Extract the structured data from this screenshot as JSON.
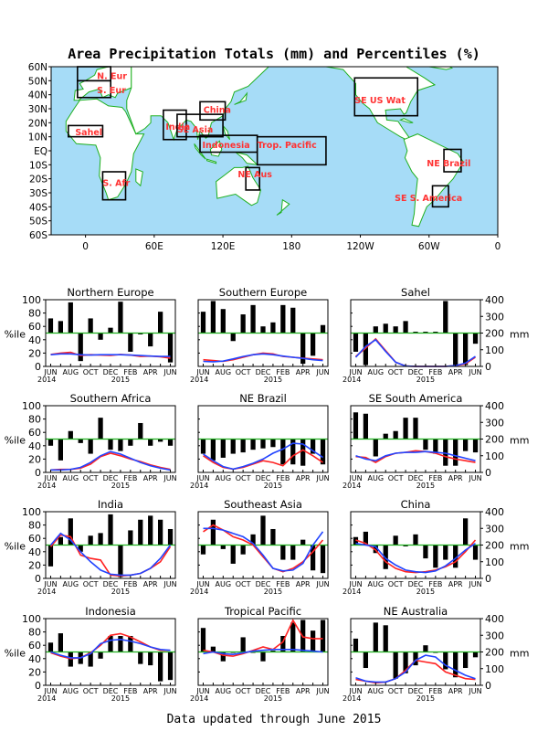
{
  "title": "Area Precipitation Totals (mm) and Percentiles (%)",
  "footer": "Data updated through June 2015",
  "map": {
    "lat_labels": [
      "60N",
      "50N",
      "40N",
      "30N",
      "20N",
      "10N",
      "EQ",
      "10S",
      "20S",
      "30S",
      "40S",
      "50S",
      "60S"
    ],
    "lon_labels": [
      "0",
      "60E",
      "120E",
      "180",
      "120W",
      "60W",
      "0"
    ],
    "regions": [
      {
        "label": "N. Eur",
        "lon": [
          -7,
          22
        ],
        "lat": [
          50,
          60
        ],
        "text_lon": 10,
        "text_lat": 53
      },
      {
        "label": "S. Eur",
        "lon": [
          -7,
          22
        ],
        "lat": [
          38,
          50
        ],
        "text_lon": 10,
        "text_lat": 43
      },
      {
        "label": "Sahel",
        "lon": [
          -15,
          15
        ],
        "lat": [
          10,
          18
        ],
        "text_lon": -9,
        "text_lat": 13
      },
      {
        "label": "S. Afr",
        "lon": [
          15,
          35
        ],
        "lat": [
          -35,
          -15
        ],
        "text_lon": 15,
        "text_lat": -23
      },
      {
        "label": "India",
        "lon": [
          68,
          88
        ],
        "lat": [
          8,
          29
        ],
        "text_lon": 70,
        "text_lat": 17
      },
      {
        "label": "China",
        "lon": [
          100,
          122
        ],
        "lat": [
          22,
          35
        ],
        "text_lon": 103,
        "text_lat": 29
      },
      {
        "label": "SE Asia",
        "lon": [
          80,
          120
        ],
        "lat": [
          10,
          26
        ],
        "text_lon": 80,
        "text_lat": 15
      },
      {
        "label": "Indonesia",
        "lon": [
          100,
          150
        ],
        "lat": [
          -1,
          11
        ],
        "text_lon": 102,
        "text_lat": 4
      },
      {
        "label": "Trop. Pacific",
        "lon": [
          150,
          210
        ],
        "lat": [
          -10,
          10
        ],
        "text_lon": 150,
        "text_lat": 4
      },
      {
        "label": "NE Aus",
        "lon": [
          140,
          152
        ],
        "lat": [
          -28,
          -12
        ],
        "text_lon": 133,
        "text_lat": -17
      },
      {
        "label": "SE US Wat",
        "lon": [
          235,
          290
        ],
        "lat": [
          25,
          52
        ],
        "text_lon": 235,
        "text_lat": 36
      },
      {
        "label": "NE Brazil",
        "lon": [
          313,
          328
        ],
        "lat": [
          -15,
          1
        ],
        "text_lon": 298,
        "text_lat": -9
      },
      {
        "label": "SE S. America",
        "lon": [
          303,
          317
        ],
        "lat": [
          -40,
          -25
        ],
        "text_lon": 270,
        "text_lat": -34
      }
    ]
  },
  "axis_labels": {
    "left": "%ile",
    "right": "mm"
  },
  "left_ticks": [
    "0",
    "20",
    "40",
    "60",
    "80",
    "100"
  ],
  "right_ticks": [
    "0",
    "100",
    "200",
    "300",
    "400"
  ],
  "month_labels": [
    "JUN",
    "AUG",
    "OCT",
    "DEC",
    "FEB",
    "APR",
    "JUN"
  ],
  "year_labels": [
    "2014",
    "2015"
  ],
  "chart_data": [
    {
      "type": "bar",
      "title": "Northern Europe",
      "x": [
        "Jun 2014",
        "Jul",
        "Aug",
        "Sep",
        "Oct",
        "Nov",
        "Dec",
        "Jan 2015",
        "Feb",
        "Mar",
        "Apr",
        "May",
        "Jun"
      ],
      "ylim": [
        0,
        100
      ],
      "y2lim": [
        0,
        400
      ],
      "percentiles": [
        72,
        68,
        96,
        8,
        72,
        40,
        58,
        97,
        22,
        48,
        30,
        82,
        6
      ],
      "series": [
        {
          "name": "",
          "color": "#ff2222",
          "values": [
            72,
            80,
            85,
            65,
            70,
            68,
            66,
            72,
            68,
            60,
            62,
            58,
            50
          ]
        },
        {
          "name": "",
          "color": "#2244ff",
          "values": [
            70,
            75,
            75,
            70,
            68,
            70,
            70,
            70,
            68,
            65,
            62,
            60,
            60
          ]
        }
      ]
    },
    {
      "type": "bar",
      "title": "Southern Europe",
      "x": [
        "Jun 2014",
        "Jul",
        "Aug",
        "Sep",
        "Oct",
        "Nov",
        "Dec",
        "Jan 2015",
        "Feb",
        "Mar",
        "Apr",
        "May",
        "Jun"
      ],
      "ylim": [
        0,
        100
      ],
      "y2lim": [
        0,
        400
      ],
      "percentiles": [
        82,
        98,
        86,
        38,
        78,
        92,
        60,
        66,
        92,
        88,
        4,
        16,
        62
      ],
      "series": [
        {
          "name": "",
          "color": "#ff2222",
          "values": [
            40,
            35,
            30,
            40,
            55,
            70,
            80,
            75,
            60,
            55,
            50,
            45,
            40
          ]
        },
        {
          "name": "",
          "color": "#2244ff",
          "values": [
            30,
            28,
            32,
            45,
            60,
            70,
            75,
            70,
            62,
            55,
            48,
            40,
            35
          ]
        }
      ]
    },
    {
      "type": "bar",
      "title": "Sahel",
      "x": [
        "Jun 2014",
        "Jul",
        "Aug",
        "Sep",
        "Oct",
        "Nov",
        "Dec",
        "Jan 2015",
        "Feb",
        "Mar",
        "Apr",
        "May",
        "Jun"
      ],
      "ylim": [
        0,
        100
      ],
      "y2lim": [
        0,
        400
      ],
      "percentiles": [
        22,
        2,
        60,
        64,
        60,
        68,
        52,
        52,
        52,
        98,
        2,
        2,
        34
      ],
      "series": [
        {
          "name": "",
          "color": "#ff2222",
          "values": [
            60,
            110,
            165,
            95,
            25,
            2,
            0,
            0,
            0,
            0,
            5,
            15,
            55
          ]
        },
        {
          "name": "",
          "color": "#2244ff",
          "values": [
            55,
            120,
            160,
            90,
            25,
            2,
            0,
            0,
            0,
            0,
            5,
            20,
            60
          ]
        }
      ]
    },
    {
      "type": "bar",
      "title": "Southern Africa",
      "x": [
        "Jun 2014",
        "Jul",
        "Aug",
        "Sep",
        "Oct",
        "Nov",
        "Dec",
        "Jan 2015",
        "Feb",
        "Mar",
        "Apr",
        "May",
        "Jun"
      ],
      "ylim": [
        0,
        100
      ],
      "y2lim": [
        0,
        400
      ],
      "percentiles": [
        40,
        18,
        62,
        44,
        28,
        82,
        34,
        32,
        40,
        74,
        40,
        46,
        40
      ],
      "series": [
        {
          "name": "",
          "color": "#ff2222",
          "values": [
            15,
            18,
            18,
            25,
            50,
            95,
            115,
            100,
            80,
            65,
            45,
            30,
            18
          ]
        },
        {
          "name": "",
          "color": "#2244ff",
          "values": [
            15,
            15,
            18,
            30,
            60,
            100,
            125,
            110,
            85,
            60,
            40,
            25,
            15
          ]
        }
      ]
    },
    {
      "type": "bar",
      "title": "NE Brazil",
      "x": [
        "Jun 2014",
        "Jul",
        "Aug",
        "Sep",
        "Oct",
        "Nov",
        "Dec",
        "Jan 2015",
        "Feb",
        "Mar",
        "Apr",
        "May",
        "Jun"
      ],
      "ylim": [
        0,
        100
      ],
      "y2lim": [
        0,
        400
      ],
      "percentiles": [
        28,
        18,
        22,
        28,
        30,
        34,
        36,
        38,
        12,
        12,
        10,
        28,
        12
      ],
      "series": [
        {
          "name": "",
          "color": "#ff2222",
          "values": [
            100,
            60,
            30,
            20,
            30,
            50,
            70,
            60,
            40,
            100,
            135,
            100,
            60
          ]
        },
        {
          "name": "",
          "color": "#2244ff",
          "values": [
            110,
            70,
            35,
            20,
            35,
            55,
            80,
            115,
            140,
            175,
            170,
            130,
            90
          ]
        }
      ]
    },
    {
      "type": "bar",
      "title": "SE South America",
      "x": [
        "Jun 2014",
        "Jul",
        "Aug",
        "Sep",
        "Oct",
        "Nov",
        "Dec",
        "Jan 2015",
        "Feb",
        "Mar",
        "Apr",
        "May",
        "Jun"
      ],
      "ylim": [
        0,
        100
      ],
      "y2lim": [
        0,
        400
      ],
      "percentiles": [
        90,
        88,
        24,
        58,
        62,
        82,
        82,
        34,
        28,
        10,
        10,
        32,
        30
      ],
      "series": [
        {
          "name": "",
          "color": "#ff2222",
          "values": [
            95,
            90,
            60,
            95,
            115,
            120,
            130,
            125,
            115,
            95,
            80,
            70,
            60
          ]
        },
        {
          "name": "",
          "color": "#2244ff",
          "values": [
            100,
            80,
            70,
            100,
            115,
            120,
            120,
            125,
            120,
            115,
            100,
            85,
            70
          ]
        }
      ]
    },
    {
      "type": "bar",
      "title": "India",
      "x": [
        "Jun 2014",
        "Jul",
        "Aug",
        "Sep",
        "Oct",
        "Nov",
        "Dec",
        "Jan 2015",
        "Feb",
        "Mar",
        "Apr",
        "May",
        "Jun"
      ],
      "ylim": [
        0,
        100
      ],
      "y2lim": [
        0,
        400
      ],
      "percentiles": [
        18,
        62,
        90,
        40,
        64,
        68,
        96,
        2,
        72,
        88,
        94,
        88,
        74
      ],
      "series": [
        {
          "name": "",
          "color": "#ff2222",
          "values": [
            190,
            260,
            250,
            140,
            120,
            110,
            20,
            15,
            20,
            30,
            60,
            100,
            190
          ]
        },
        {
          "name": "",
          "color": "#2244ff",
          "values": [
            200,
            270,
            230,
            160,
            100,
            50,
            25,
            20,
            20,
            30,
            60,
            120,
            200
          ]
        }
      ]
    },
    {
      "type": "bar",
      "title": "Southeast Asia",
      "x": [
        "Jun 2014",
        "Jul",
        "Aug",
        "Sep",
        "Oct",
        "Nov",
        "Dec",
        "Jan 2015",
        "Feb",
        "Mar",
        "Apr",
        "May",
        "Jun"
      ],
      "ylim": [
        0,
        100
      ],
      "y2lim": [
        0,
        400
      ],
      "percentiles": [
        36,
        88,
        44,
        22,
        36,
        66,
        94,
        74,
        28,
        28,
        58,
        12,
        8
      ],
      "series": [
        {
          "name": "",
          "color": "#ff2222",
          "values": [
            280,
            320,
            290,
            250,
            230,
            200,
            130,
            60,
            40,
            60,
            100,
            160,
            230
          ]
        },
        {
          "name": "",
          "color": "#2244ff",
          "values": [
            300,
            300,
            290,
            270,
            250,
            210,
            140,
            60,
            45,
            50,
            90,
            200,
            280
          ]
        }
      ]
    },
    {
      "type": "bar",
      "title": "China",
      "x": [
        "Jun 2014",
        "Jul",
        "Aug",
        "Sep",
        "Oct",
        "Nov",
        "Dec",
        "Jan 2015",
        "Feb",
        "Mar",
        "Apr",
        "May",
        "Jun"
      ],
      "ylim": [
        0,
        100
      ],
      "y2lim": [
        0,
        400
      ],
      "percentiles": [
        62,
        70,
        38,
        14,
        64,
        48,
        66,
        30,
        16,
        28,
        16,
        90,
        28
      ],
      "series": [
        {
          "name": "",
          "color": "#ff2222",
          "values": [
            230,
            210,
            170,
            100,
            60,
            40,
            35,
            40,
            50,
            70,
            100,
            160,
            230
          ]
        },
        {
          "name": "",
          "color": "#2244ff",
          "values": [
            210,
            200,
            190,
            120,
            80,
            50,
            40,
            35,
            45,
            75,
            120,
            170,
            210
          ]
        }
      ]
    },
    {
      "type": "bar",
      "title": "Indonesia",
      "x": [
        "Jun 2014",
        "Jul",
        "Aug",
        "Sep",
        "Oct",
        "Nov",
        "Dec",
        "Jan 2015",
        "Feb",
        "Mar",
        "Apr",
        "May",
        "Jun"
      ],
      "ylim": [
        0,
        100
      ],
      "y2lim": [
        0,
        400
      ],
      "percentiles": [
        64,
        78,
        28,
        32,
        28,
        40,
        74,
        74,
        74,
        32,
        30,
        6,
        8
      ],
      "series": [
        {
          "name": "",
          "color": "#ff2222",
          "values": [
            195,
            175,
            160,
            165,
            195,
            240,
            300,
            310,
            290,
            260,
            230,
            210,
            210
          ]
        },
        {
          "name": "",
          "color": "#2244ff",
          "values": [
            200,
            180,
            165,
            165,
            190,
            250,
            270,
            275,
            265,
            250,
            230,
            215,
            210
          ]
        }
      ]
    },
    {
      "type": "bar",
      "title": "Tropical Pacific",
      "x": [
        "Jun 2014",
        "Jul",
        "Aug",
        "Sep",
        "Oct",
        "Nov",
        "Dec",
        "Jan 2015",
        "Feb",
        "Mar",
        "Apr",
        "May",
        "Jun"
      ],
      "ylim": [
        0,
        100
      ],
      "y2lim": [
        0,
        400
      ],
      "percentiles": [
        86,
        58,
        36,
        50,
        72,
        50,
        36,
        52,
        74,
        94,
        98,
        82,
        98
      ],
      "series": [
        {
          "name": "",
          "color": "#ff2222",
          "values": [
            210,
            200,
            180,
            175,
            190,
            210,
            230,
            215,
            260,
            390,
            290,
            280,
            280
          ]
        },
        {
          "name": "",
          "color": "#2244ff",
          "values": [
            190,
            200,
            190,
            185,
            195,
            205,
            210,
            215,
            215,
            215,
            210,
            205,
            200
          ]
        }
      ]
    },
    {
      "type": "bar",
      "title": "NE Australia",
      "x": [
        "Jun 2014",
        "Jul",
        "Aug",
        "Sep",
        "Oct",
        "Nov",
        "Dec",
        "Jan 2015",
        "Feb",
        "Mar",
        "Apr",
        "May",
        "Jun"
      ],
      "ylim": [
        0,
        100
      ],
      "y2lim": [
        0,
        400
      ],
      "percentiles": [
        70,
        26,
        94,
        90,
        10,
        18,
        30,
        60,
        50,
        24,
        12,
        26,
        42
      ],
      "series": [
        {
          "name": "",
          "color": "#ff2222",
          "values": [
            35,
            25,
            15,
            20,
            40,
            90,
            150,
            140,
            130,
            80,
            60,
            40,
            35
          ]
        },
        {
          "name": "",
          "color": "#2244ff",
          "values": [
            45,
            25,
            20,
            20,
            40,
            80,
            150,
            180,
            170,
            120,
            90,
            60,
            40
          ]
        }
      ]
    }
  ]
}
